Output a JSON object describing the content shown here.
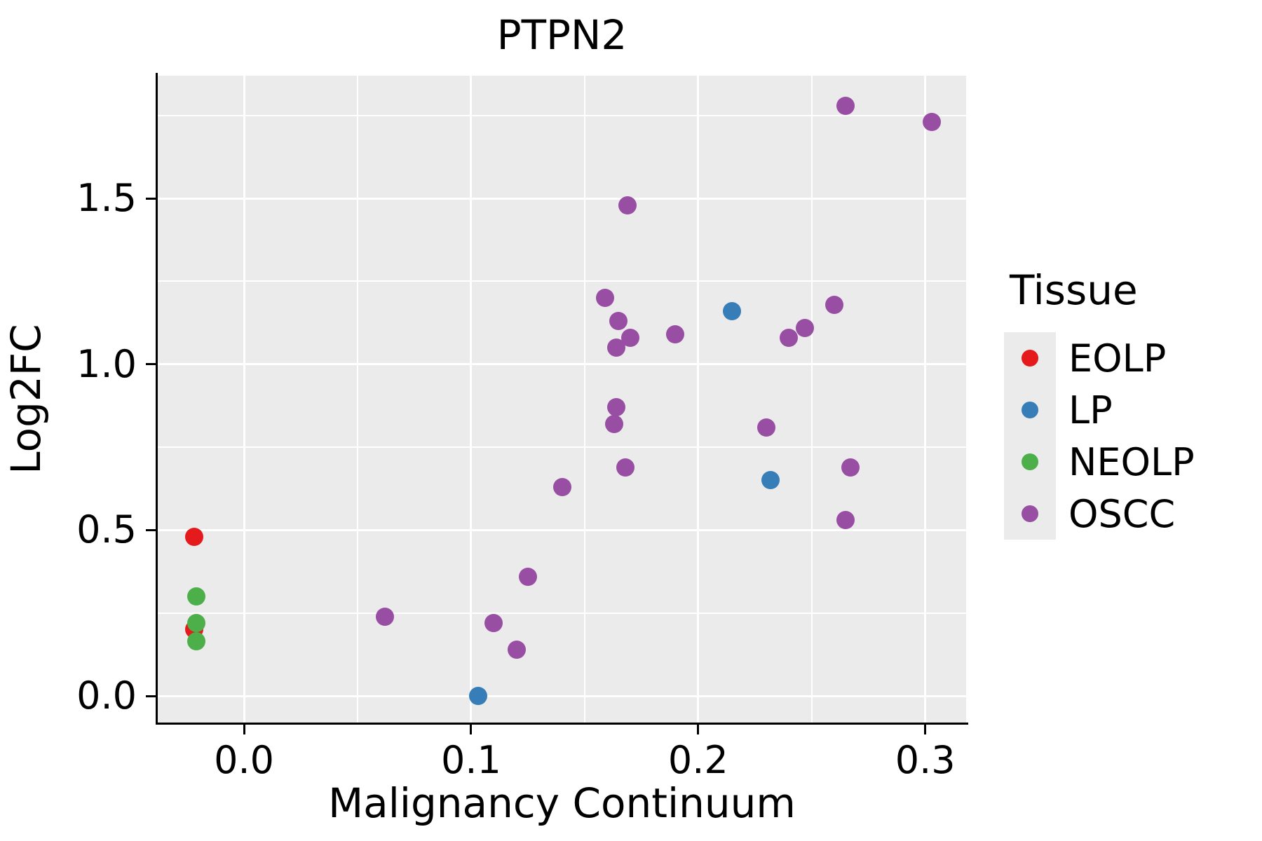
{
  "chart_data": {
    "type": "scatter",
    "title": "PTPN2",
    "xlabel": "Malignancy Continuum",
    "ylabel": "Log2FC",
    "legend_title": "Tissue",
    "legend_position": "right",
    "grid": true,
    "xlim": [
      -0.038,
      0.318
    ],
    "ylim": [
      -0.08,
      1.87
    ],
    "x_ticks": [
      0.0,
      0.1,
      0.2,
      0.3
    ],
    "y_ticks": [
      0.0,
      0.5,
      1.0,
      1.5
    ],
    "x_minor_ticks": [
      0.05,
      0.15,
      0.25
    ],
    "y_minor_ticks": [
      0.25,
      0.75,
      1.25,
      1.75
    ],
    "series": [
      {
        "name": "EOLP",
        "color": "#e41a1c",
        "points": [
          [
            -0.022,
            0.48
          ],
          [
            -0.022,
            0.2
          ]
        ]
      },
      {
        "name": "LP",
        "color": "#377eb8",
        "points": [
          [
            0.103,
            0.0
          ],
          [
            0.215,
            1.16
          ],
          [
            0.232,
            0.65
          ]
        ]
      },
      {
        "name": "NEOLP",
        "color": "#4daf4a",
        "points": [
          [
            -0.021,
            0.3
          ],
          [
            -0.021,
            0.22
          ],
          [
            -0.021,
            0.165
          ]
        ]
      },
      {
        "name": "OSCC",
        "color": "#984ea3",
        "points": [
          [
            0.265,
            1.78
          ],
          [
            0.303,
            1.73
          ],
          [
            0.169,
            1.48
          ],
          [
            0.159,
            1.2
          ],
          [
            0.165,
            1.13
          ],
          [
            0.17,
            1.08
          ],
          [
            0.164,
            1.05
          ],
          [
            0.19,
            1.09
          ],
          [
            0.24,
            1.08
          ],
          [
            0.247,
            1.11
          ],
          [
            0.26,
            1.18
          ],
          [
            0.164,
            0.87
          ],
          [
            0.163,
            0.82
          ],
          [
            0.23,
            0.81
          ],
          [
            0.168,
            0.69
          ],
          [
            0.267,
            0.69
          ],
          [
            0.265,
            0.53
          ],
          [
            0.14,
            0.63
          ],
          [
            0.125,
            0.36
          ],
          [
            0.062,
            0.24
          ],
          [
            0.11,
            0.22
          ],
          [
            0.12,
            0.14
          ]
        ]
      }
    ]
  },
  "colors": {
    "panel_bg": "#ebebeb",
    "grid": "#ffffff",
    "axis": "#000000",
    "text": "#000000",
    "legend_key_bg": "#ebebeb"
  }
}
